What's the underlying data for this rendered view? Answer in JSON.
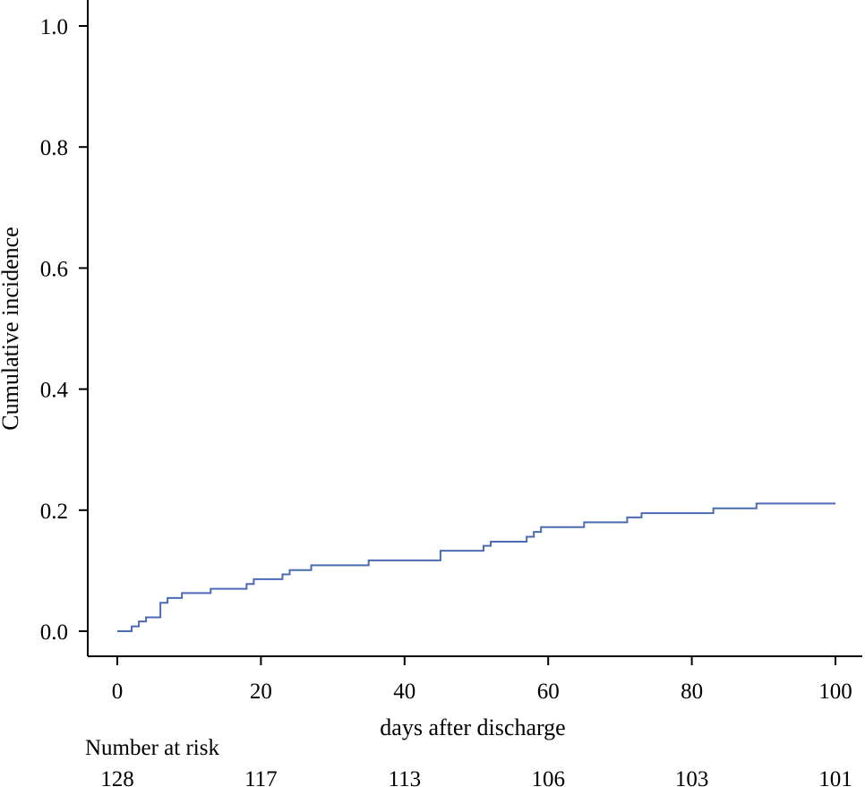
{
  "chart_data": {
    "type": "line",
    "step": true,
    "xlabel": "days after discharge",
    "ylabel": "Cumulative incidence",
    "xlim": [
      -4,
      104
    ],
    "ylim": [
      -0.04,
      1.04
    ],
    "xticks": [
      0,
      20,
      40,
      60,
      80,
      100
    ],
    "xtick_labels": [
      "0",
      "20",
      "40",
      "60",
      "80",
      "100"
    ],
    "yticks": [
      0.0,
      0.2,
      0.4,
      0.6,
      0.8,
      1.0
    ],
    "ytick_labels": [
      "0.0",
      "0.2",
      "0.4",
      "0.6",
      "0.8",
      "1.0"
    ],
    "grid": false,
    "series": [
      {
        "color": "#4c6bb5",
        "x": [
          0,
          2,
          3,
          4,
          6,
          7,
          9,
          13,
          18,
          19,
          23,
          24,
          27,
          35,
          45,
          51,
          52,
          57,
          58,
          59,
          65,
          71,
          73,
          83,
          89,
          100
        ],
        "y": [
          0.0,
          0.008,
          0.016,
          0.023,
          0.047,
          0.055,
          0.063,
          0.07,
          0.078,
          0.086,
          0.094,
          0.101,
          0.109,
          0.117,
          0.133,
          0.141,
          0.148,
          0.156,
          0.164,
          0.172,
          0.18,
          0.188,
          0.195,
          0.203,
          0.211,
          0.211
        ]
      }
    ],
    "risk_table": {
      "title": "Number at risk",
      "times": [
        0,
        20,
        40,
        60,
        80,
        100
      ],
      "values": [
        "128",
        "117",
        "113",
        "106",
        "103",
        "101"
      ]
    },
    "x_axis_label": "days after discharge",
    "y_axis_label": "Cumulative incidence"
  }
}
